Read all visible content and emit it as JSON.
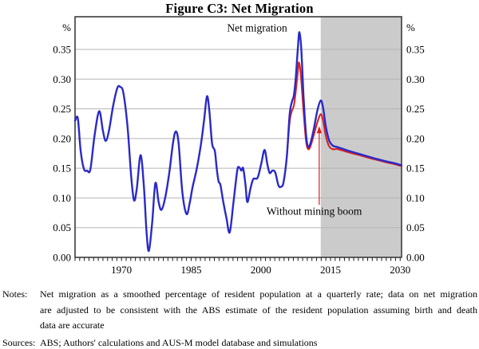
{
  "title": "Figure C3: Net Migration",
  "notes": {
    "label": "Notes:",
    "lines": [
      "Net migration as a smoothed percentage of resident population at a quarterly rate; data on net migration",
      "are adjusted to be consistent with the ABS estimate of the resident population assuming birth and death",
      "data are accurate"
    ]
  },
  "sources": {
    "label": "Sources:",
    "text": "ABS; Authors' calculations and AUS-M model database and simulations"
  },
  "chart_data": {
    "type": "line",
    "title": "Figure C3: Net Migration",
    "colors": {
      "blue_line": "#2a2ac8",
      "red_line": "#d92121",
      "projection_shading": "#cbcbcb",
      "gridline": "#b5b5b5",
      "frame": "#3c3c3c",
      "tick": "#1a1a1a"
    },
    "x_axis": {
      "range": [
        1960,
        2030.3
      ],
      "tick_interval": 1,
      "label_years": [
        1970,
        1985,
        2000,
        2015,
        2030
      ]
    },
    "y_axis": {
      "range": [
        0,
        0.405
      ],
      "unit": "%",
      "tick_values": [
        0,
        0.05,
        0.1,
        0.15,
        0.2,
        0.25,
        0.3,
        0.35
      ],
      "tick_labels": [
        "0.00",
        "0.05",
        "0.10",
        "0.15",
        "0.20",
        "0.25",
        "0.30",
        "0.35"
      ],
      "sides": "both",
      "grid": true
    },
    "shaded_projection_region": {
      "from_year": 2012.9,
      "to_year": 2030.3
    },
    "series": [
      {
        "name": "Without mining boom",
        "color": "#d92121",
        "width": 2.1,
        "data_name": "without-mining-boom-line",
        "points": [
          [
            2005.6,
            0.17
          ],
          [
            2006.2,
            0.228
          ],
          [
            2006.7,
            0.247
          ],
          [
            2007.1,
            0.255
          ],
          [
            2007.5,
            0.278
          ],
          [
            2008.0,
            0.315
          ],
          [
            2008.2,
            0.328
          ],
          [
            2008.6,
            0.308
          ],
          [
            2009.2,
            0.245
          ],
          [
            2009.7,
            0.198
          ],
          [
            2010.1,
            0.183
          ],
          [
            2010.6,
            0.185
          ],
          [
            2011.3,
            0.203
          ],
          [
            2012.2,
            0.228
          ],
          [
            2012.9,
            0.241
          ],
          [
            2013.4,
            0.23
          ],
          [
            2014.0,
            0.204
          ],
          [
            2014.7,
            0.187
          ],
          [
            2015.5,
            0.182
          ],
          [
            2016.3,
            0.1825
          ],
          [
            2017.5,
            0.18
          ],
          [
            2019.0,
            0.1765
          ],
          [
            2021.0,
            0.1725
          ],
          [
            2023.0,
            0.168
          ],
          [
            2025.0,
            0.164
          ],
          [
            2027.0,
            0.16
          ],
          [
            2029.0,
            0.1565
          ],
          [
            2030.3,
            0.1535
          ]
        ]
      },
      {
        "name": "Net migration",
        "color": "#2a2ac8",
        "width": 2.4,
        "data_name": "net-migration-line",
        "points": [
          [
            1960.0,
            0.23
          ],
          [
            1960.6,
            0.234
          ],
          [
            1961.2,
            0.18
          ],
          [
            1961.9,
            0.149
          ],
          [
            1962.6,
            0.146
          ],
          [
            1963.3,
            0.148
          ],
          [
            1964.2,
            0.205
          ],
          [
            1965.2,
            0.246
          ],
          [
            1966.0,
            0.213
          ],
          [
            1966.6,
            0.196
          ],
          [
            1967.3,
            0.213
          ],
          [
            1968.2,
            0.255
          ],
          [
            1969.1,
            0.285
          ],
          [
            1969.7,
            0.287
          ],
          [
            1970.4,
            0.277
          ],
          [
            1971.3,
            0.22
          ],
          [
            1972.1,
            0.135
          ],
          [
            1972.7,
            0.096
          ],
          [
            1973.3,
            0.116
          ],
          [
            1974.1,
            0.172
          ],
          [
            1974.8,
            0.122
          ],
          [
            1975.4,
            0.042
          ],
          [
            1975.9,
            0.011
          ],
          [
            1976.6,
            0.058
          ],
          [
            1977.3,
            0.125
          ],
          [
            1978.0,
            0.093
          ],
          [
            1978.6,
            0.08
          ],
          [
            1979.4,
            0.1
          ],
          [
            1980.3,
            0.143
          ],
          [
            1981.1,
            0.193
          ],
          [
            1981.7,
            0.212
          ],
          [
            1982.3,
            0.192
          ],
          [
            1983.1,
            0.11
          ],
          [
            1984.0,
            0.073
          ],
          [
            1984.7,
            0.092
          ],
          [
            1985.3,
            0.118
          ],
          [
            1986.2,
            0.149
          ],
          [
            1987.1,
            0.19
          ],
          [
            1987.8,
            0.232
          ],
          [
            1988.4,
            0.271
          ],
          [
            1988.9,
            0.248
          ],
          [
            1989.5,
            0.192
          ],
          [
            1990.1,
            0.179
          ],
          [
            1990.5,
            0.15
          ],
          [
            1990.9,
            0.128
          ],
          [
            1991.3,
            0.122
          ],
          [
            1991.9,
            0.094
          ],
          [
            1992.6,
            0.066
          ],
          [
            1993.3,
            0.042
          ],
          [
            1994.1,
            0.092
          ],
          [
            1994.9,
            0.145
          ],
          [
            1995.3,
            0.152
          ],
          [
            1995.8,
            0.146
          ],
          [
            1996.2,
            0.15
          ],
          [
            1996.7,
            0.122
          ],
          [
            1997.1,
            0.093
          ],
          [
            1997.8,
            0.117
          ],
          [
            1998.4,
            0.132
          ],
          [
            1999.3,
            0.134
          ],
          [
            2000.1,
            0.158
          ],
          [
            2000.8,
            0.181
          ],
          [
            2001.4,
            0.157
          ],
          [
            2001.9,
            0.142
          ],
          [
            2002.5,
            0.146
          ],
          [
            2003.1,
            0.143
          ],
          [
            2003.8,
            0.121
          ],
          [
            2004.4,
            0.119
          ],
          [
            2004.9,
            0.127
          ],
          [
            2005.6,
            0.17
          ],
          [
            2006.2,
            0.24
          ],
          [
            2006.7,
            0.262
          ],
          [
            2007.1,
            0.272
          ],
          [
            2007.5,
            0.3
          ],
          [
            2008.0,
            0.355
          ],
          [
            2008.3,
            0.379
          ],
          [
            2008.7,
            0.352
          ],
          [
            2009.2,
            0.27
          ],
          [
            2009.7,
            0.21
          ],
          [
            2010.1,
            0.187
          ],
          [
            2010.6,
            0.19
          ],
          [
            2011.3,
            0.212
          ],
          [
            2012.2,
            0.248
          ],
          [
            2012.9,
            0.264
          ],
          [
            2013.4,
            0.252
          ],
          [
            2014.0,
            0.22
          ],
          [
            2014.7,
            0.197
          ],
          [
            2015.5,
            0.188
          ],
          [
            2016.3,
            0.186
          ],
          [
            2017.5,
            0.183
          ],
          [
            2019.0,
            0.179
          ],
          [
            2021.0,
            0.1745
          ],
          [
            2023.0,
            0.17
          ],
          [
            2025.0,
            0.1655
          ],
          [
            2027.0,
            0.1615
          ],
          [
            2029.0,
            0.158
          ],
          [
            2030.3,
            0.155
          ]
        ]
      }
    ],
    "annotations": [
      {
        "text": "Net migration",
        "color": "#2a2ac8",
        "x_year": 1999.2,
        "y_value": 0.386,
        "size": 13.5,
        "data_name": "net-migration-label"
      },
      {
        "text": "Without mining boom",
        "color": "#d92121",
        "x_year": 2011.5,
        "y_value": 0.078,
        "size": 13.5,
        "data_name": "without-mining-boom-label"
      }
    ],
    "arrow": {
      "color": "#d92121",
      "x_year": 2012.57,
      "y_from": 0.0885,
      "y_to": 0.221
    }
  }
}
